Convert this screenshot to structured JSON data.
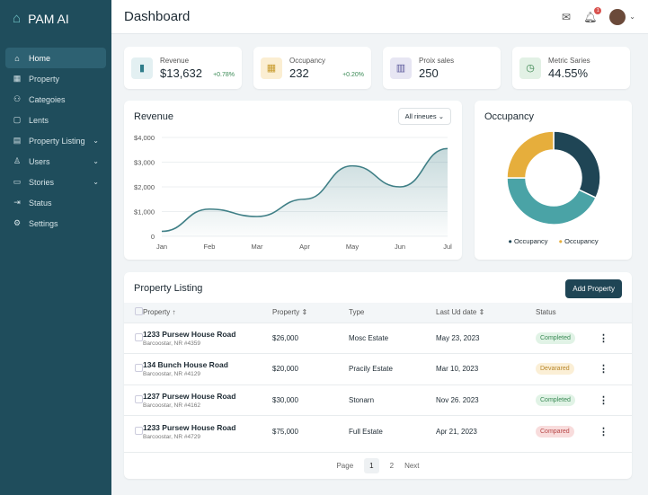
{
  "app": {
    "name": "PAM AI"
  },
  "sidebar": {
    "items": [
      {
        "label": "Home",
        "icon": "home-icon",
        "active": true
      },
      {
        "label": "Property",
        "icon": "grid-icon"
      },
      {
        "label": "Categoies",
        "icon": "users-icon"
      },
      {
        "label": "Lents",
        "icon": "calendar-icon"
      },
      {
        "label": "Property Listing",
        "icon": "building-icon",
        "chevron": true
      },
      {
        "label": "Users",
        "icon": "user-icon",
        "chevron": true
      },
      {
        "label": "Stories",
        "icon": "card-icon",
        "chevron": true
      },
      {
        "label": "Status",
        "icon": "login-icon"
      },
      {
        "label": "Settings",
        "icon": "gear-icon"
      }
    ]
  },
  "header": {
    "title": "Dashboard",
    "notification_count": "1"
  },
  "kpis": [
    {
      "label": "Revenue",
      "value": "$13,632",
      "change": "+0.78%",
      "bg": "#e3f0f2",
      "fg": "#2f7d8a",
      "icon": "bar-chart-icon",
      "glyph": "▮"
    },
    {
      "label": "Occupancy",
      "value": "232",
      "change": "+0.20%",
      "bg": "#fbeed2",
      "fg": "#c79a2b",
      "icon": "people-icon",
      "glyph": "▦"
    },
    {
      "label": "Proix sales",
      "value": "250",
      "change": "",
      "bg": "#e7e6f3",
      "fg": "#5a579a",
      "icon": "building-icon",
      "glyph": "▥"
    },
    {
      "label": "Metric Saries",
      "value": "44.55%",
      "change": "",
      "bg": "#e2f1e5",
      "fg": "#2f7d45",
      "icon": "clock-icon",
      "glyph": "◷"
    }
  ],
  "revenue": {
    "title": "Revenue",
    "filter": "All rineues"
  },
  "chart_data": [
    {
      "type": "area",
      "title": "Revenue",
      "categories": [
        "Jan",
        "Feb",
        "Mar",
        "Apr",
        "May",
        "Jun",
        "Jul"
      ],
      "values": [
        200,
        1100,
        800,
        1500,
        2850,
        2000,
        3550
      ],
      "yticks": [
        "0",
        "$1,000",
        "$2,000",
        "$3,000",
        "$4,000"
      ],
      "ylim": [
        0,
        4000
      ],
      "grid": true,
      "color": "#3f7f86"
    },
    {
      "type": "pie",
      "title": "Occupancy",
      "donut": true,
      "values": [
        32,
        43,
        25
      ],
      "colors": [
        "#1f4555",
        "#4aa3a6",
        "#e6ae3c"
      ],
      "legend": [
        "Occupancy",
        "Occupancy"
      ],
      "legend_colors": [
        "#1f4555",
        "#e6ae3c"
      ],
      "legend_placement": "bottom"
    }
  ],
  "listing": {
    "title": "Property Listing",
    "add_label": "Add Property",
    "columns": [
      "Property ↑",
      "Property ⇕",
      "Type",
      "Last Ud date ⇕",
      "Status"
    ],
    "rows": [
      {
        "name": "1233 Pursew House Road",
        "addr": "Barcoostar, NR #4359",
        "price": "$26,000",
        "type": "Mosc Estate",
        "date": "May 23, 2023",
        "status": "Completed",
        "sbg": "#e1f3e6",
        "sfg": "#3a8a55"
      },
      {
        "name": "134 Bunch House Road",
        "addr": "Barcoostar, NR #4129",
        "price": "$20,000",
        "type": "Pracily Estate",
        "date": "Mar 10, 2023",
        "status": "Devarared",
        "sbg": "#fbefd6",
        "sfg": "#b8862a"
      },
      {
        "name": "1237 Pursew House Road",
        "addr": "Barcoostar, NR #4162",
        "price": "$30,000",
        "type": "Stonarn",
        "date": "Nov 26. 2023",
        "status": "Completed",
        "sbg": "#e1f3e6",
        "sfg": "#3a8a55"
      },
      {
        "name": "1233 Pursew House Road",
        "addr": "Barcoostar, NR #4729",
        "price": "$75,000",
        "type": "Full Estate",
        "date": "Apr 21, 2023",
        "status": "Compared",
        "sbg": "#f8dcdc",
        "sfg": "#b84848"
      }
    ],
    "pagination": {
      "label": "Page",
      "pages": [
        "1",
        "2"
      ],
      "next": "Next"
    }
  }
}
